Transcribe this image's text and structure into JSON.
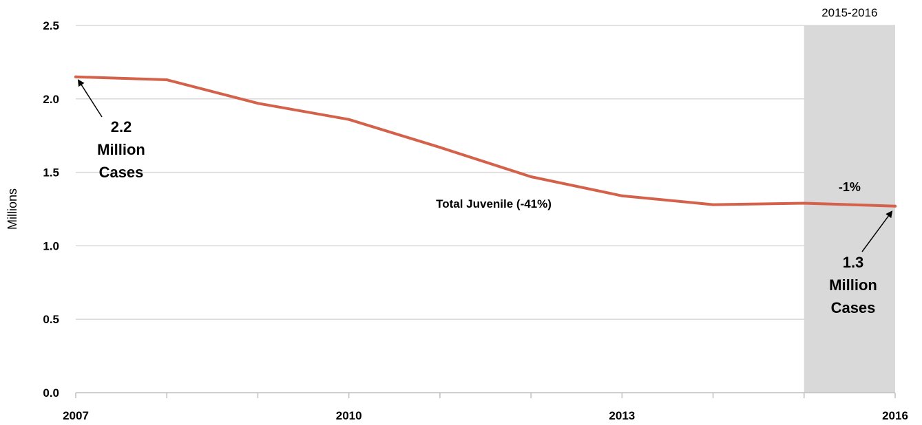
{
  "chart_data": {
    "type": "line",
    "ylabel": "Millions",
    "xlabel": "",
    "ylim": [
      0,
      2.5
    ],
    "xlim": [
      2007,
      2016
    ],
    "y_ticks": [
      "0.0",
      "0.5",
      "1.0",
      "1.5",
      "2.0",
      "2.5"
    ],
    "x_ticks": [
      "2007",
      "2010",
      "2013",
      "2016"
    ],
    "grid": "horizontal",
    "x": [
      2007,
      2008,
      2009,
      2010,
      2011,
      2012,
      2013,
      2014,
      2015,
      2016
    ],
    "series": [
      {
        "values": [
          2.15,
          2.13,
          1.97,
          1.86,
          1.67,
          1.47,
          1.34,
          1.28,
          1.29,
          1.27
        ],
        "color": "#d4624a"
      }
    ],
    "series_label": "Total Juvenile (-41%)",
    "highlight_period": {
      "label": "2015-2016",
      "from": 2015,
      "to": 2016,
      "change": "-1%",
      "color": "#d9d9d9"
    },
    "annotations": [
      {
        "lines": [
          "2.2",
          "Million",
          "Cases"
        ],
        "point": [
          2007,
          2.15
        ]
      },
      {
        "lines": [
          "1.3",
          "Million",
          "Cases"
        ],
        "point": [
          2016,
          1.27
        ]
      }
    ]
  }
}
